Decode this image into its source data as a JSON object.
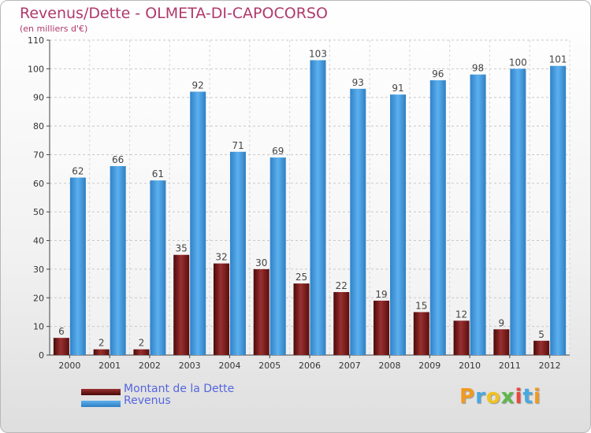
{
  "chart_data": {
    "type": "bar",
    "title": "Revenus/Dette - OLMETA-DI-CAPOCORSO",
    "subtitle": "(en milliers d'€)",
    "categories": [
      "2000",
      "2001",
      "2002",
      "2003",
      "2004",
      "2005",
      "2006",
      "2007",
      "2008",
      "2009",
      "2010",
      "2011",
      "2012"
    ],
    "series": [
      {
        "name": "Montant de la Dette",
        "color": "#7a1a1a",
        "values": [
          6,
          2,
          2,
          35,
          32,
          30,
          25,
          22,
          19,
          15,
          12,
          9,
          5
        ]
      },
      {
        "name": "Revenus",
        "color": "#3a93dc",
        "values": [
          62,
          66,
          61,
          92,
          71,
          69,
          103,
          93,
          91,
          96,
          98,
          100,
          101
        ]
      }
    ],
    "ylim": [
      0,
      110
    ],
    "yticks": [
      0,
      10,
      20,
      30,
      40,
      50,
      60,
      70,
      80,
      90,
      100,
      110
    ],
    "grid": true,
    "legend": "bottom-left"
  },
  "legend": {
    "dette_label": "Montant de la Dette",
    "revenus_label": "Revenus"
  },
  "logo": {
    "letters": [
      "P",
      "r",
      "o",
      "x",
      "i",
      "t",
      "i"
    ],
    "colors": [
      "#f29a1f",
      "#48a9e0",
      "#f2c21f",
      "#5db84a",
      "#e8483f",
      "#48a9e0",
      "#f29a1f"
    ]
  }
}
